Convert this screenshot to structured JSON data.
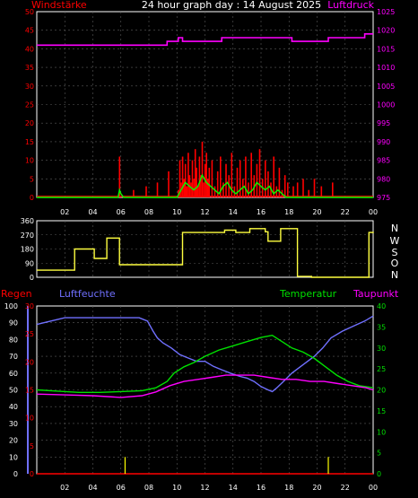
{
  "page": {
    "title": "24 hour graph day : 14 August 2025"
  },
  "colors": {
    "background": "#000000",
    "grid": "#5a5a5a",
    "frame": "#ffffff",
    "wind": "#ff0000",
    "gust": "#00ff00",
    "pressure": "#ff00ff",
    "direction": "#ffff40",
    "humidity": "#7070ff",
    "temperature": "#00e000",
    "dewpoint": "#ff00ff",
    "rain": "#ff0000",
    "rain_ticks": "#ffff00",
    "text": "#ffffff"
  },
  "chart_data": [
    {
      "id": "wind_pressure",
      "type": "bar",
      "title": "24 hour graph day : 14 August 2025",
      "left_label": "Windstärke",
      "right_label": "Luftdruck",
      "x_ticks": [
        "02",
        "04",
        "06",
        "08",
        "10",
        "12",
        "14",
        "16",
        "18",
        "20",
        "22",
        "00"
      ],
      "xlim_hours": [
        0,
        24
      ],
      "left_ylim": [
        0,
        50
      ],
      "left_ticks": [
        "0",
        "5",
        "10",
        "15",
        "20",
        "25",
        "30",
        "35",
        "40",
        "45",
        "50"
      ],
      "right_ylim": [
        975,
        1025
      ],
      "right_ticks": [
        "975",
        "980",
        "985",
        "990",
        "995",
        "1000",
        "1005",
        "1010",
        "1015",
        "1020",
        "1025"
      ],
      "grid": true,
      "series": [
        {
          "key": "wind_speed",
          "style": "bars",
          "x": [
            5.9,
            6.9,
            7.8,
            8.6,
            9.4,
            10.1,
            10.2,
            10.3,
            10.4,
            10.5,
            10.6,
            10.7,
            10.8,
            10.9,
            11.0,
            11.1,
            11.2,
            11.3,
            11.4,
            11.5,
            11.6,
            11.7,
            11.8,
            11.9,
            12.0,
            12.1,
            12.2,
            12.3,
            12.5,
            12.7,
            12.9,
            13.1,
            13.3,
            13.5,
            13.7,
            13.9,
            14.1,
            14.3,
            14.5,
            14.7,
            14.9,
            15.1,
            15.3,
            15.5,
            15.7,
            15.9,
            16.1,
            16.3,
            16.5,
            16.7,
            16.9,
            17.1,
            17.3,
            17.5,
            17.7,
            17.9,
            18.3,
            18.6,
            19.0,
            19.4,
            19.8,
            20.3,
            21.1
          ],
          "values": [
            11,
            2,
            3,
            4,
            7,
            2,
            10,
            4,
            11,
            5,
            9,
            3,
            12,
            6,
            4,
            10,
            5,
            13,
            8,
            3,
            11,
            6,
            15,
            4,
            9,
            12,
            5,
            8,
            10,
            3,
            7,
            11,
            4,
            9,
            6,
            12,
            3,
            8,
            10,
            5,
            11,
            4,
            12,
            6,
            9,
            13,
            5,
            10,
            7,
            4,
            11,
            3,
            8,
            2,
            6,
            4,
            3,
            4,
            5,
            2,
            5,
            3,
            4
          ]
        },
        {
          "key": "gust",
          "style": "line",
          "x": [
            0,
            5.8,
            5.9,
            6.0,
            6.2,
            10.0,
            10.3,
            10.6,
            10.9,
            11.2,
            11.5,
            11.8,
            12.1,
            12.4,
            12.7,
            13.0,
            13.3,
            13.6,
            13.9,
            14.2,
            14.5,
            14.8,
            15.1,
            15.4,
            15.7,
            16.0,
            16.3,
            16.6,
            16.9,
            17.2,
            17.5,
            17.8,
            18.0,
            24
          ],
          "values": [
            0,
            0,
            2,
            1,
            0,
            0,
            2,
            4,
            3,
            2,
            3,
            6,
            4,
            3,
            2,
            1,
            3,
            4,
            2,
            1,
            2,
            3,
            1,
            2,
            4,
            3,
            2,
            3,
            1,
            2,
            1,
            0,
            0,
            0
          ]
        },
        {
          "key": "pressure",
          "style": "step",
          "axis": "right",
          "x": [
            0,
            6.2,
            9.3,
            10.1,
            10.4,
            13.2,
            18.2,
            20.8,
            23.4,
            24
          ],
          "values": [
            1016,
            1016,
            1017,
            1018,
            1017,
            1018,
            1017,
            1018,
            1019,
            1019
          ]
        }
      ]
    },
    {
      "id": "wind_direction",
      "type": "line",
      "xlim_hours": [
        0,
        24
      ],
      "left_ylim": [
        0,
        360
      ],
      "left_ticks": [
        "0",
        "90",
        "180",
        "270",
        "360"
      ],
      "right_ticks": [
        "N",
        "O",
        "S",
        "W",
        "N"
      ],
      "grid": true,
      "series": [
        {
          "key": "direction",
          "style": "step",
          "x": [
            0,
            2.7,
            4.1,
            5.0,
            5.9,
            9.4,
            10.4,
            13.4,
            14.2,
            15.2,
            16.3,
            16.5,
            17.4,
            18.6,
            19.6,
            23.7,
            24
          ],
          "values": [
            45,
            180,
            120,
            250,
            80,
            80,
            285,
            300,
            285,
            310,
            290,
            230,
            310,
            5,
            0,
            285,
            290
          ]
        }
      ]
    },
    {
      "id": "rain_humidity_temperature",
      "type": "line",
      "labels": {
        "rain": "Regen",
        "humidity": "Luftfeuchte",
        "temperature": "Temperatur",
        "dewpoint": "Taupunkt"
      },
      "x_ticks": [
        "02",
        "04",
        "06",
        "08",
        "10",
        "12",
        "14",
        "16",
        "18",
        "20",
        "22",
        "00"
      ],
      "xlim_hours": [
        0,
        24
      ],
      "humidity_ylim": [
        0,
        100
      ],
      "humidity_ticks": [
        "0",
        "10",
        "20",
        "30",
        "40",
        "50",
        "60",
        "70",
        "80",
        "90",
        "100"
      ],
      "rain_ylim": [
        0,
        30
      ],
      "rain_ticks": [
        "0",
        "5",
        "10",
        "15",
        "20",
        "25",
        "30"
      ],
      "temperature_ylim": [
        0,
        40
      ],
      "temperature_ticks": [
        "0",
        "5",
        "10",
        "15",
        "20",
        "25",
        "30",
        "35",
        "40"
      ],
      "grid": true,
      "series": [
        {
          "key": "humidity",
          "axis": "humidity",
          "x": [
            0,
            1.0,
            2.0,
            3.5,
            5.0,
            6.5,
            7.3,
            7.9,
            8.3,
            8.6,
            9.0,
            9.6,
            10.2,
            10.8,
            11.4,
            12.0,
            12.6,
            13.2,
            13.8,
            14.5,
            15.0,
            15.5,
            16.0,
            16.5,
            16.8,
            17.1,
            17.6,
            18.2,
            19.0,
            19.8,
            20.4,
            21.0,
            21.8,
            22.6,
            23.4,
            24
          ],
          "values": [
            89,
            91,
            93,
            93,
            93,
            93,
            93,
            91,
            85,
            81,
            78,
            75,
            71,
            69,
            67,
            67,
            64,
            62,
            60,
            58,
            57,
            55,
            52,
            50,
            49,
            51,
            55,
            60,
            65,
            70,
            75,
            81,
            85,
            88,
            91,
            94
          ]
        },
        {
          "key": "temperature",
          "axis": "temperature",
          "x": [
            0,
            1.5,
            3.0,
            4.5,
            6.0,
            7.5,
            8.5,
            9.3,
            9.8,
            10.5,
            11.2,
            12.0,
            13.0,
            14.0,
            15.0,
            16.0,
            16.8,
            17.5,
            18.2,
            19.0,
            19.8,
            20.6,
            21.4,
            22.2,
            23.0,
            24
          ],
          "values": [
            20,
            19.7,
            19.4,
            19.4,
            19.6,
            19.8,
            20.5,
            22,
            24,
            25.5,
            26.5,
            28,
            29.5,
            30.5,
            31.5,
            32.5,
            33,
            31.5,
            30,
            29,
            27.5,
            25.5,
            23.5,
            22,
            21,
            20.5
          ]
        },
        {
          "key": "dewpoint",
          "axis": "temperature",
          "x": [
            0,
            2.0,
            4.0,
            6.0,
            7.5,
            8.5,
            9.5,
            10.5,
            11.5,
            12.5,
            13.5,
            14.5,
            15.5,
            16.5,
            17.5,
            18.5,
            19.5,
            20.5,
            21.5,
            22.5,
            23.5,
            24
          ],
          "values": [
            19,
            18.8,
            18.6,
            18.2,
            18.6,
            19.5,
            21,
            22,
            22.5,
            23,
            23.5,
            23.5,
            23.5,
            23,
            22.5,
            22.5,
            22,
            22,
            21.5,
            21,
            20.5,
            20
          ]
        },
        {
          "key": "rain",
          "axis": "rain",
          "x": [
            0,
            24
          ],
          "values": [
            0,
            0
          ]
        },
        {
          "key": "rain_markers",
          "style": "ticks",
          "x": [
            6.3,
            20.8
          ],
          "values": [
            3,
            3
          ]
        }
      ]
    }
  ]
}
